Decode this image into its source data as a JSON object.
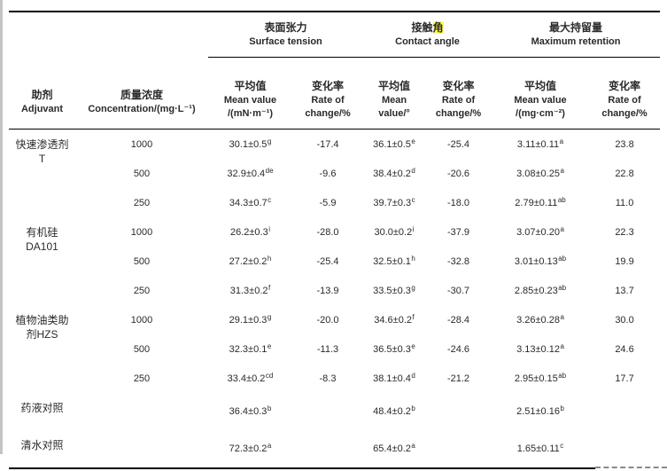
{
  "colors": {
    "highlight": "#ffff4f",
    "text": "#2a2a2a",
    "rule": "#000000",
    "edge_strip": "#c4c4c4",
    "artifact": "#8a8a8a"
  },
  "header": {
    "adjuvant": [
      "助剂",
      "Adjuvant"
    ],
    "concentration": [
      "质量浓度",
      "Concentration/(mg·L⁻¹)"
    ],
    "groups": {
      "surface_tension": {
        "zh": "表面张力",
        "en": "Surface tension"
      },
      "contact_angle": {
        "zh_prefix": "接触",
        "zh_highlighted": "角",
        "en": "Contact angle"
      },
      "max_retention": {
        "zh": "最大持留量",
        "en": "Maximum retention"
      }
    },
    "sub": {
      "st_mean": [
        "平均值",
        "Mean value",
        "/(mN·m⁻¹)"
      ],
      "st_rate": [
        "变化率",
        "Rate of",
        "change/%"
      ],
      "ca_mean": [
        "平均值",
        "Mean",
        "value/°"
      ],
      "ca_rate": [
        "变化率",
        "Rate of",
        "change/%"
      ],
      "mr_mean": [
        "平均值",
        "Mean value",
        "/(mg·cm⁻²)"
      ],
      "mr_rate": [
        "变化率",
        "Rate of",
        "change/%"
      ]
    }
  },
  "rows": [
    {
      "group_lines": [
        "快速渗透剂",
        "T"
      ],
      "span": 3,
      "conc": "1000",
      "st": "30.1±0.5",
      "st_sup": "g",
      "st_rate": "-17.4",
      "ca": "36.1±0.5",
      "ca_sup": "e",
      "ca_rate": "-25.4",
      "mr": "3.11±0.11",
      "mr_sup": "a",
      "mr_rate": "23.8"
    },
    {
      "conc": "500",
      "st": "32.9±0.4",
      "st_sup": "de",
      "st_rate": "-9.6",
      "ca": "38.4±0.2",
      "ca_sup": "d",
      "ca_rate": "-20.6",
      "mr": "3.08±0.25",
      "mr_sup": "a",
      "mr_rate": "22.8"
    },
    {
      "conc": "250",
      "st": "34.3±0.7",
      "st_sup": "c",
      "st_rate": "-5.9",
      "ca": "39.7±0.3",
      "ca_sup": "c",
      "ca_rate": "-18.0",
      "mr": "2.79±0.11",
      "mr_sup": "ab",
      "mr_rate": "11.0"
    },
    {
      "group_lines": [
        "有机硅",
        "DA101"
      ],
      "span": 3,
      "conc": "1000",
      "st": "26.2±0.3",
      "st_sup": "i",
      "st_rate": "-28.0",
      "ca": "30.0±0.2",
      "ca_sup": "i",
      "ca_rate": "-37.9",
      "mr": "3.07±0.20",
      "mr_sup": "a",
      "mr_rate": "22.3"
    },
    {
      "conc": "500",
      "st": "27.2±0.2",
      "st_sup": "h",
      "st_rate": "-25.4",
      "ca": "32.5±0.1",
      "ca_sup": "h",
      "ca_rate": "-32.8",
      "mr": "3.01±0.13",
      "mr_sup": "ab",
      "mr_rate": "19.9"
    },
    {
      "conc": "250",
      "st": "31.3±0.2",
      "st_sup": "f",
      "st_rate": "-13.9",
      "ca": "33.5±0.3",
      "ca_sup": "g",
      "ca_rate": "-30.7",
      "mr": "2.85±0.23",
      "mr_sup": "ab",
      "mr_rate": "13.7"
    },
    {
      "group_lines": [
        "植物油类助",
        "剂HZS"
      ],
      "span": 3,
      "conc": "1000",
      "st": "29.1±0.3",
      "st_sup": "g",
      "st_rate": "-20.0",
      "ca": "34.6±0.2",
      "ca_sup": "f",
      "ca_rate": "-28.4",
      "mr": "3.26±0.28",
      "mr_sup": "a",
      "mr_rate": "30.0"
    },
    {
      "conc": "500",
      "st": "32.3±0.1",
      "st_sup": "e",
      "st_rate": "-11.3",
      "ca": "36.5±0.3",
      "ca_sup": "e",
      "ca_rate": "-24.6",
      "mr": "3.13±0.12",
      "mr_sup": "a",
      "mr_rate": "24.6"
    },
    {
      "conc": "250",
      "st": "33.4±0.2",
      "st_sup": "cd",
      "st_rate": "-8.3",
      "ca": "38.1±0.4",
      "ca_sup": "d",
      "ca_rate": "-21.2",
      "mr": "2.95±0.15",
      "mr_sup": "ab",
      "mr_rate": "17.7"
    },
    {
      "group_lines": [
        "药液对照"
      ],
      "span": 1,
      "conc": "",
      "st": "36.4±0.3",
      "st_sup": "b",
      "st_rate": "",
      "ca": "48.4±0.2",
      "ca_sup": "b",
      "ca_rate": "",
      "mr": "2.51±0.16",
      "mr_sup": "b",
      "mr_rate": ""
    },
    {
      "group_lines": [
        "清水对照"
      ],
      "span": 1,
      "conc": "",
      "st": "72.3±0.2",
      "st_sup": "a",
      "st_rate": "",
      "ca": "65.4±0.2",
      "ca_sup": "a",
      "ca_rate": "",
      "mr": "1.65±0.11",
      "mr_sup": "c",
      "mr_rate": ""
    }
  ]
}
